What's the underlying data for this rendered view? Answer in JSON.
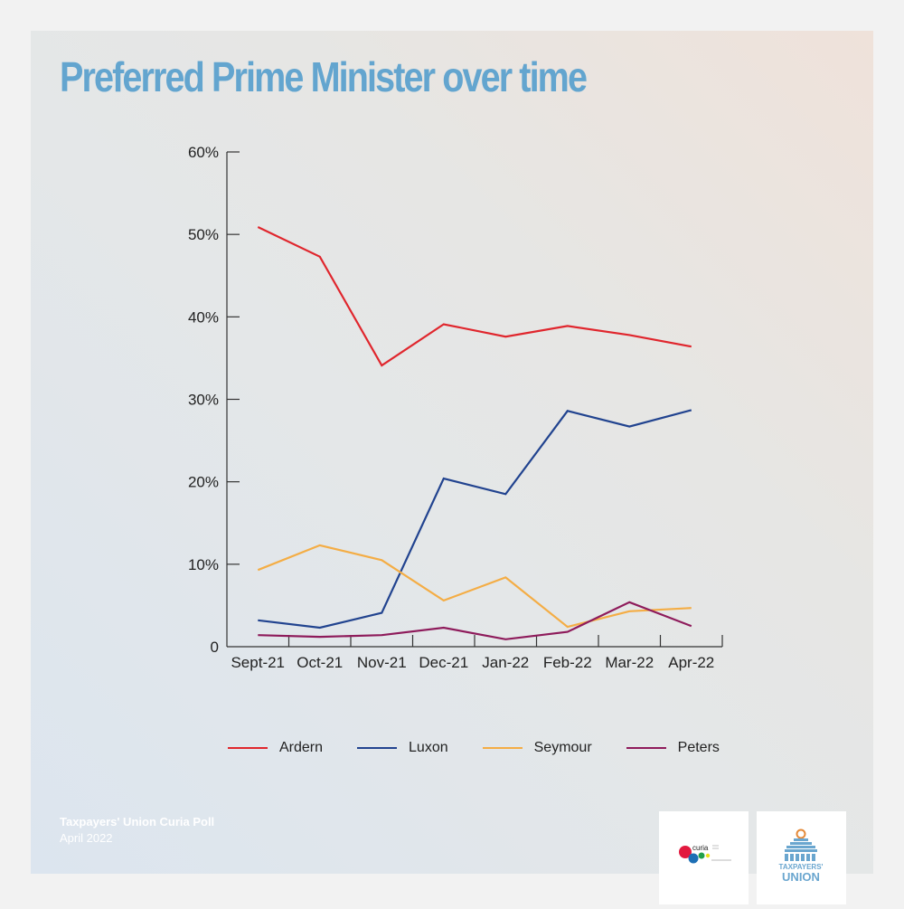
{
  "title": "Preferred Prime Minister over time",
  "footer": {
    "source": "Taxpayers' Union Curia Poll",
    "date": "April 2022"
  },
  "logos": {
    "curia": "curia",
    "taxpayers_union_line1": "TAXPAYERS'",
    "taxpayers_union_line2": "UNION"
  },
  "chart_data": {
    "type": "line",
    "title": "Preferred Prime Minister over time",
    "xlabel": "",
    "ylabel": "",
    "categories": [
      "Sept-21",
      "Oct-21",
      "Nov-21",
      "Dec-21",
      "Jan-22",
      "Feb-22",
      "Mar-22",
      "Apr-22"
    ],
    "ylim": [
      0,
      60
    ],
    "yticks": [
      0,
      10,
      20,
      30,
      40,
      50,
      60
    ],
    "ytick_labels": [
      "0",
      "10%",
      "20%",
      "30%",
      "40%",
      "50%",
      "60%"
    ],
    "grid": false,
    "legend_position": "bottom",
    "series": [
      {
        "name": "Ardern",
        "color": "#e0262d",
        "values": [
          50.9,
          47.3,
          34.1,
          39.1,
          37.6,
          38.9,
          37.8,
          36.4
        ]
      },
      {
        "name": "Luxon",
        "color": "#21438f",
        "values": [
          3.2,
          2.3,
          4.1,
          20.4,
          18.5,
          28.6,
          26.7,
          28.7
        ]
      },
      {
        "name": "Seymour",
        "color": "#f4ad45",
        "values": [
          9.3,
          12.3,
          10.5,
          5.6,
          8.4,
          2.4,
          4.3,
          4.7
        ]
      },
      {
        "name": "Peters",
        "color": "#8e1b5b",
        "values": [
          1.4,
          1.2,
          1.4,
          2.3,
          0.9,
          1.8,
          5.4,
          2.5
        ]
      }
    ]
  }
}
